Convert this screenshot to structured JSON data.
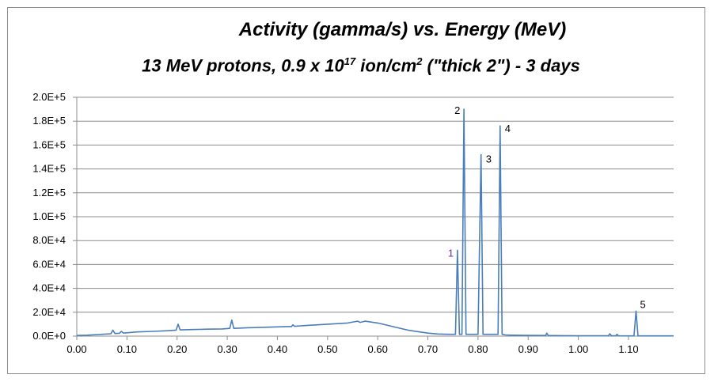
{
  "chart_data": {
    "type": "line",
    "title_line1": "Activity (gamma/s) vs. Energy (MeV)",
    "title_line2_a": "13 MeV protons, 0.9 x 10",
    "title_line2_sup1": "17",
    "title_line2_b": " ion/cm",
    "title_line2_sup2": "2",
    "title_line2_c": " (\"thick 2\") - 3 days",
    "xlabel": "",
    "ylabel": "",
    "xlim": [
      0.0,
      1.19
    ],
    "ylim": [
      0,
      200000
    ],
    "grid": true,
    "line_color": "#4a7ebb",
    "x_ticks": [
      {
        "value": 0.0,
        "label": "0.00"
      },
      {
        "value": 0.1,
        "label": "0.10"
      },
      {
        "value": 0.2,
        "label": "0.20"
      },
      {
        "value": 0.3,
        "label": "0.30"
      },
      {
        "value": 0.4,
        "label": "0.40"
      },
      {
        "value": 0.5,
        "label": "0.50"
      },
      {
        "value": 0.6,
        "label": "0.60"
      },
      {
        "value": 0.7,
        "label": "0.70"
      },
      {
        "value": 0.8,
        "label": "0.80"
      },
      {
        "value": 0.9,
        "label": "0.90"
      },
      {
        "value": 1.0,
        "label": "1.00"
      },
      {
        "value": 1.1,
        "label": "1.10"
      }
    ],
    "y_ticks": [
      {
        "value": 0,
        "label": "0.0E+0"
      },
      {
        "value": 20000,
        "label": "2.0E+4"
      },
      {
        "value": 40000,
        "label": "4.0E+4"
      },
      {
        "value": 60000,
        "label": "6.0E+4"
      },
      {
        "value": 80000,
        "label": "8.0E+4"
      },
      {
        "value": 100000,
        "label": "1.0E+5"
      },
      {
        "value": 120000,
        "label": "1.2E+5"
      },
      {
        "value": 140000,
        "label": "1.4E+5"
      },
      {
        "value": 160000,
        "label": "1.6E+5"
      },
      {
        "value": 180000,
        "label": "1.8E+5"
      },
      {
        "value": 200000,
        "label": "2.0E+5"
      }
    ],
    "series": [
      {
        "x": [
          0.0,
          0.02,
          0.05,
          0.068,
          0.072,
          0.076,
          0.085,
          0.089,
          0.093,
          0.12,
          0.15,
          0.18,
          0.198,
          0.202,
          0.206,
          0.23,
          0.26,
          0.29,
          0.305,
          0.309,
          0.313,
          0.34,
          0.38,
          0.42,
          0.428,
          0.431,
          0.434,
          0.46,
          0.5,
          0.54,
          0.56,
          0.565,
          0.575,
          0.6,
          0.63,
          0.66,
          0.7,
          0.72,
          0.74,
          0.75,
          0.755,
          0.759,
          0.763,
          0.766,
          0.768,
          0.772,
          0.776,
          0.78,
          0.79,
          0.8,
          0.806,
          0.81,
          0.815,
          0.825,
          0.835,
          0.84,
          0.844,
          0.848,
          0.855,
          0.87,
          0.9,
          0.935,
          0.937,
          0.94,
          0.97,
          1.0,
          1.03,
          1.06,
          1.063,
          1.066,
          1.075,
          1.077,
          1.08,
          1.1,
          1.111,
          1.115,
          1.119,
          1.125,
          1.15,
          1.19
        ],
        "y": [
          500,
          800,
          1500,
          2000,
          5000,
          2200,
          2400,
          4000,
          2500,
          3500,
          4000,
          4500,
          5000,
          10000,
          5200,
          5500,
          5800,
          6000,
          6500,
          13500,
          6500,
          7000,
          7500,
          8000,
          8000,
          9500,
          8200,
          9000,
          10000,
          11000,
          12500,
          11500,
          12500,
          11000,
          8000,
          5000,
          2500,
          1800,
          1500,
          1500,
          1500,
          72000,
          1500,
          1500,
          1500,
          190000,
          1500,
          1500,
          1500,
          1500,
          152000,
          1500,
          1500,
          1500,
          1500,
          1500,
          176000,
          1500,
          1000,
          800,
          600,
          500,
          2500,
          500,
          400,
          300,
          300,
          300,
          2000,
          300,
          300,
          1500,
          300,
          200,
          200,
          21000,
          200,
          200,
          200,
          200
        ]
      }
    ],
    "annotations": [
      {
        "text": "1",
        "x": 0.759,
        "y": 72000,
        "color": "#7030a0"
      },
      {
        "text": "2",
        "x": 0.772,
        "y": 190000,
        "color": "#000000"
      },
      {
        "text": "3",
        "x": 0.806,
        "y": 152000,
        "color": "#000000"
      },
      {
        "text": "4",
        "x": 0.844,
        "y": 176000,
        "color": "#000000"
      },
      {
        "text": "5",
        "x": 1.115,
        "y": 21000,
        "color": "#000000"
      }
    ]
  }
}
